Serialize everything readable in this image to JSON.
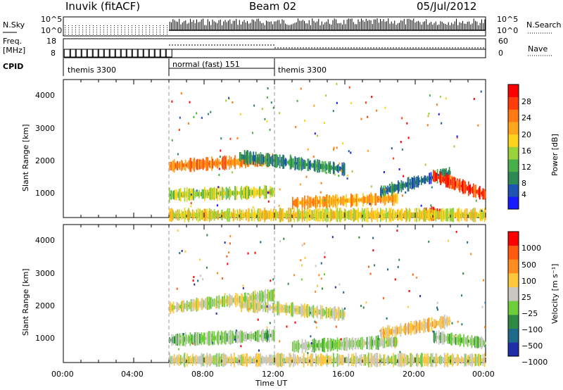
{
  "header": {
    "station": "Inuvik (fitACF)",
    "beam": "Beam 02",
    "date": "05/Jul/2012"
  },
  "panels": {
    "nsky_label": "N.Sky",
    "nsky_ticks": [
      "10^5",
      "10^0"
    ],
    "nsearch_label": "N.Search",
    "nsearch_ticks": [
      "10^5",
      "10^0"
    ],
    "freq_label": "Freq.",
    "freq_unit": "[MHz]",
    "freq_ticks": [
      "18",
      "8"
    ],
    "nave_label": "Nave",
    "nave_ticks": [
      "60",
      "0"
    ],
    "cpid_label": "CPID",
    "cpid_segments": [
      {
        "label": "themis 3300",
        "start_hour": 0,
        "end_hour": 6
      },
      {
        "label": "normal (fast) 151",
        "start_hour": 6,
        "end_hour": 12
      },
      {
        "label": "themis 3300",
        "start_hour": 12,
        "end_hour": 24
      }
    ]
  },
  "power_panel": {
    "ylabel": "Slant Range [km]",
    "yticks": [
      "4000",
      "3000",
      "2000",
      "1000"
    ],
    "colorbar_label": "Power [dB]",
    "colorbar_ticks": [
      "28",
      "24",
      "20",
      "16",
      "12",
      "8",
      "4"
    ],
    "colors": [
      "#1a1aff",
      "#1f55b0",
      "#2e8a55",
      "#48b04a",
      "#9ad23c",
      "#ffd21e",
      "#ffa51e",
      "#ff7a12",
      "#ff3c0a",
      "#ff0000"
    ]
  },
  "velocity_panel": {
    "ylabel": "Slant Range [km]",
    "yticks": [
      "4000",
      "3000",
      "2000",
      "1000"
    ],
    "colorbar_label": "Velocity [m s⁻¹]",
    "colorbar_ticks": [
      "1000",
      "500",
      "100",
      "25",
      "−25",
      "−100",
      "−500",
      "−1000"
    ],
    "colors": [
      "#1f2ea8",
      "#1f6a8a",
      "#2c8a45",
      "#6fcf3a",
      "#c8c8c0",
      "#ffc83c",
      "#ff8c1e",
      "#ff5a0f",
      "#ff0000"
    ]
  },
  "xaxis": {
    "label": "Time UT",
    "ticks": [
      "00:00",
      "04:00",
      "08:00",
      "12:00",
      "16:00",
      "20:00",
      "00:00"
    ]
  },
  "chart_data": [
    {
      "type": "line",
      "title": "Beam 02",
      "x_unit": "hour UT",
      "xlim": [
        0,
        24
      ],
      "series": [
        {
          "name": "N.Sky",
          "x": [
            0,
            6,
            6.01,
            24
          ],
          "values": [
            1000,
            1000,
            30000,
            30000
          ]
        },
        {
          "name": "N.Search",
          "x": [
            0,
            6,
            6.01,
            12,
            18,
            24
          ],
          "values": [
            1,
            1,
            10,
            10,
            100,
            100
          ]
        },
        {
          "name": "Freq.",
          "x": [
            0,
            24
          ],
          "values": [
            10.5,
            10.5
          ]
        },
        {
          "name": "Nave",
          "x": [
            0,
            6,
            6.01,
            12,
            12.01,
            24
          ],
          "values": [
            4,
            4,
            40,
            40,
            25,
            25
          ]
        }
      ]
    },
    {
      "type": "heatmap",
      "title": "",
      "xlabel": "Time UT",
      "ylabel": "Slant Range [km]",
      "colorbar_label": "Power [dB]",
      "xlim": [
        0,
        24
      ],
      "ylim": [
        200,
        4500
      ],
      "clim": [
        0,
        30
      ],
      "series": [
        {
          "x": [
            6,
            12
          ],
          "values": [
            1800,
            2000
          ],
          "value": 22
        },
        {
          "x": [
            6,
            12
          ],
          "values": [
            900,
            1000
          ],
          "value": 14
        },
        {
          "x": [
            10,
            16
          ],
          "values": [
            2100,
            1700
          ],
          "value": 8
        },
        {
          "x": [
            13,
            19
          ],
          "values": [
            650,
            800
          ],
          "value": 20
        },
        {
          "x": [
            18,
            22
          ],
          "values": [
            1000,
            1600
          ],
          "value": 6
        },
        {
          "x": [
            20.5,
            21.5
          ],
          "values": [
            320,
            320
          ],
          "value": 28
        },
        {
          "x": [
            21,
            24
          ],
          "values": [
            1500,
            900
          ],
          "value": 26
        },
        {
          "x": [
            6,
            24
          ],
          "values": [
            280,
            280
          ],
          "value": 16
        }
      ]
    },
    {
      "type": "heatmap",
      "title": "",
      "xlabel": "Time UT",
      "ylabel": "Slant Range [km]",
      "colorbar_label": "Velocity [m s⁻¹]",
      "xlim": [
        0,
        24
      ],
      "ylim": [
        200,
        4500
      ],
      "clim": [
        -1000,
        1000
      ],
      "series": [
        {
          "x": [
            6,
            12
          ],
          "values": [
            1900,
            2300
          ],
          "value": 0
        },
        {
          "x": [
            6,
            12
          ],
          "values": [
            900,
            1050
          ],
          "value": -150
        },
        {
          "x": [
            10,
            16
          ],
          "values": [
            2000,
            1700
          ],
          "value": 0
        },
        {
          "x": [
            13,
            19
          ],
          "values": [
            700,
            850
          ],
          "value": -100
        },
        {
          "x": [
            18,
            22
          ],
          "values": [
            1100,
            1500
          ],
          "value": 200
        },
        {
          "x": [
            21,
            24
          ],
          "values": [
            1000,
            800
          ],
          "value": -150
        },
        {
          "x": [
            6,
            24
          ],
          "values": [
            280,
            280
          ],
          "value": 60
        }
      ]
    }
  ]
}
